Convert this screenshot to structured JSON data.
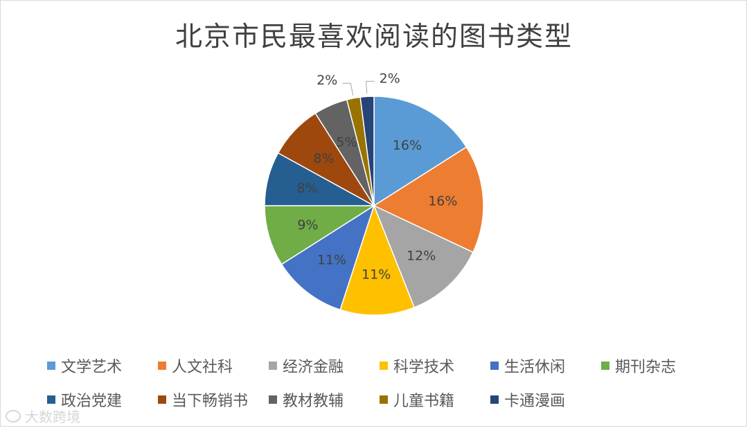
{
  "chart_data": {
    "type": "pie",
    "title": "北京市民最喜欢阅读的图书类型",
    "categories": [
      "文学艺术",
      "人文社科",
      "经济金融",
      "科学技术",
      "生活休闲",
      "期刊杂志",
      "政治党建",
      "当下畅销书",
      "教材教辅",
      "儿童书籍",
      "卡通漫画"
    ],
    "values": [
      16,
      16,
      12,
      11,
      11,
      9,
      8,
      8,
      5,
      2,
      2
    ],
    "data_labels": [
      "16%",
      "16%",
      "12%",
      "11%",
      "11%",
      "9%",
      "8%",
      "8%",
      "5%",
      "2%",
      "2%"
    ],
    "colors": [
      "#5B9BD5",
      "#ED7D31",
      "#A5A5A5",
      "#FFC000",
      "#4472C4",
      "#70AD47",
      "#255E91",
      "#9E480E",
      "#636363",
      "#997300",
      "#264478"
    ],
    "legend_position": "bottom"
  },
  "watermark": {
    "text": "大数跨境",
    "icon": "speech-bubble-icon"
  }
}
